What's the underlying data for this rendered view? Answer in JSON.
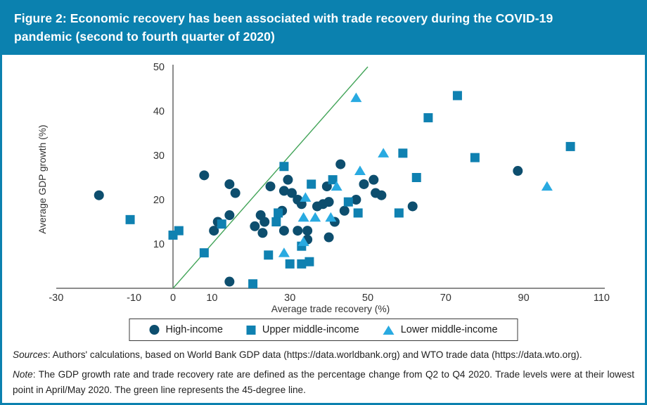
{
  "figure": {
    "title": "Figure 2: Economic recovery has been associated with trade recovery during the COVID-19 pandemic (second to fourth quarter of 2020)"
  },
  "colors": {
    "header_bg": "#0b81af",
    "high_income": "#0d4e6e",
    "upper_middle_income": "#0f81b1",
    "lower_middle_income": "#29aae1",
    "reference_line_green": "#42a458",
    "axis_gray": "#8c8c8c",
    "tick_text": "#333333"
  },
  "chart_data": {
    "type": "scatter",
    "xlabel": "Average trade recovery (%)",
    "ylabel": "Average GDP growth (%)",
    "xlim": [
      -30,
      110
    ],
    "ylim": [
      0,
      50
    ],
    "x_ticks": [
      -30,
      -10,
      0,
      10,
      30,
      50,
      70,
      90,
      110
    ],
    "y_ticks": [
      10,
      20,
      30,
      40,
      50
    ],
    "grid": false,
    "legend_position": "bottom",
    "reference_line": {
      "label": "45-degree line",
      "from": [
        0,
        0
      ],
      "to": [
        50,
        50
      ]
    },
    "series": [
      {
        "name": "High-income",
        "marker": "circle",
        "color": "#0d4e6e",
        "points": [
          [
            -19,
            21
          ],
          [
            8,
            25.5
          ],
          [
            14.5,
            23.5
          ],
          [
            16,
            21.5
          ],
          [
            14.5,
            16.5
          ],
          [
            11.5,
            15
          ],
          [
            10.5,
            13
          ],
          [
            14.5,
            1.5
          ],
          [
            22.5,
            16.5
          ],
          [
            23.5,
            15
          ],
          [
            21,
            14
          ],
          [
            23,
            12.5
          ],
          [
            25,
            23
          ],
          [
            28.5,
            22
          ],
          [
            29.5,
            24.5
          ],
          [
            30.5,
            21.5
          ],
          [
            32,
            20
          ],
          [
            33,
            19
          ],
          [
            28,
            17.5
          ],
          [
            28.5,
            13
          ],
          [
            32,
            13
          ],
          [
            34.5,
            13
          ],
          [
            34.5,
            11
          ],
          [
            37,
            18.5
          ],
          [
            38.5,
            19
          ],
          [
            40,
            19.5
          ],
          [
            39.5,
            23
          ],
          [
            40,
            11.5
          ],
          [
            41.5,
            15
          ],
          [
            43,
            28
          ],
          [
            44,
            17.5
          ],
          [
            47,
            20
          ],
          [
            49,
            23.5
          ],
          [
            51.5,
            24.5
          ],
          [
            52,
            21.5
          ],
          [
            53.5,
            21
          ],
          [
            61.5,
            18.5
          ],
          [
            88.5,
            26.5
          ]
        ]
      },
      {
        "name": "Upper middle-income",
        "marker": "square",
        "color": "#0f81b1",
        "points": [
          [
            -11,
            15.5
          ],
          [
            0,
            12
          ],
          [
            1.5,
            13
          ],
          [
            8,
            8
          ],
          [
            12.5,
            14.5
          ],
          [
            20.5,
            1
          ],
          [
            24.5,
            7.5
          ],
          [
            26.5,
            15
          ],
          [
            27,
            17
          ],
          [
            28.5,
            27.5
          ],
          [
            30,
            5.5
          ],
          [
            33,
            5.5
          ],
          [
            33,
            9.5
          ],
          [
            35,
            6
          ],
          [
            35.5,
            23.5
          ],
          [
            41,
            24.5
          ],
          [
            45,
            19.5
          ],
          [
            47.5,
            17
          ],
          [
            58,
            17
          ],
          [
            59,
            30.5
          ],
          [
            62.5,
            25
          ],
          [
            65.5,
            38.5
          ],
          [
            73,
            43.5
          ],
          [
            77.5,
            29.5
          ],
          [
            102,
            32
          ]
        ]
      },
      {
        "name": "Lower middle-income",
        "marker": "triangle",
        "color": "#29aae1",
        "points": [
          [
            34,
            20.5
          ],
          [
            33.5,
            16
          ],
          [
            36.5,
            16
          ],
          [
            40.5,
            16
          ],
          [
            33.5,
            10.5
          ],
          [
            28.5,
            8
          ],
          [
            42,
            23
          ],
          [
            47,
            43
          ],
          [
            48,
            26.5
          ],
          [
            54,
            30.5
          ],
          [
            96,
            23
          ]
        ]
      }
    ]
  },
  "footer": {
    "sources_label": "Sources",
    "sources_text": ": Authors' calculations, based on World Bank GDP data (https://data.worldbank.org) and WTO trade data (https://data.wto.org).",
    "note_label": "Note",
    "note_text": ": The GDP growth rate and trade recovery rate are defined as the percentage change from Q2 to Q4 2020. Trade levels were at their lowest point in April/May 2020. The green line represents the 45-degree line."
  }
}
